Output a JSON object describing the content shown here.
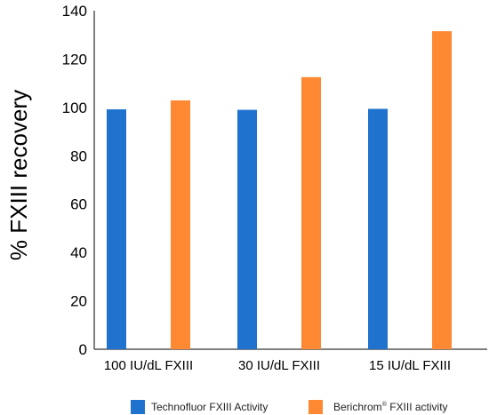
{
  "chart_data": {
    "type": "bar",
    "title": "",
    "xlabel": "",
    "ylabel": "% FXIII recovery",
    "ylim": [
      0,
      140
    ],
    "yticks": [
      0,
      20,
      40,
      60,
      80,
      100,
      120,
      140
    ],
    "categories": [
      "100 IU/dL FXIII",
      "30 IU/dL FXIII",
      "15 IU/dL FXIII"
    ],
    "series": [
      {
        "name": "Technofluor FXIII Activity",
        "color": "#1f73cf",
        "values": [
          99.2,
          99.0,
          99.4
        ]
      },
      {
        "name": "Berichrom® FXIII activity",
        "color": "#ff8833",
        "values": [
          102.9,
          112.5,
          131.5
        ]
      }
    ],
    "grid": false,
    "legend_position": "bottom"
  },
  "legend": {
    "technofluor": "Technofluor FXIII Activity",
    "berichrom_name": "Berichrom",
    "berichrom_mark": "®",
    "berichrom_rest": " FXIII activity"
  }
}
